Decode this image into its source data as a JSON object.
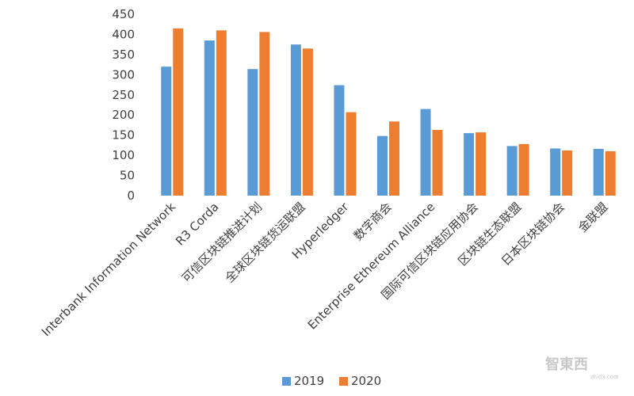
{
  "chart_data": {
    "type": "bar",
    "categories": [
      "Interbank Information Network",
      "R3 Corda",
      "可信区块链推进计划",
      "全球区块链货运联盟",
      "Hyperledger",
      "数字商会",
      "Enterprise Ethereum Alliance",
      "国际可信区块链应用协会",
      "区块链生态联盟",
      "日本区块链协会",
      "金联盟"
    ],
    "series": [
      {
        "name": "2019",
        "color": "#5b9bd5",
        "values": [
          320,
          385,
          314,
          375,
          274,
          148,
          215,
          155,
          123,
          117,
          116
        ]
      },
      {
        "name": "2020",
        "color": "#ed7d31",
        "values": [
          415,
          410,
          406,
          365,
          207,
          184,
          163,
          157,
          128,
          112,
          110
        ]
      }
    ],
    "ylim": [
      0,
      450
    ],
    "yticks": [
      "0",
      "50",
      "100",
      "150",
      "200",
      "250",
      "300",
      "350",
      "400",
      "450"
    ],
    "grid": false,
    "legend_position": "bottom"
  },
  "watermark": {
    "brand": "智東西",
    "url": "zhidx.com"
  }
}
